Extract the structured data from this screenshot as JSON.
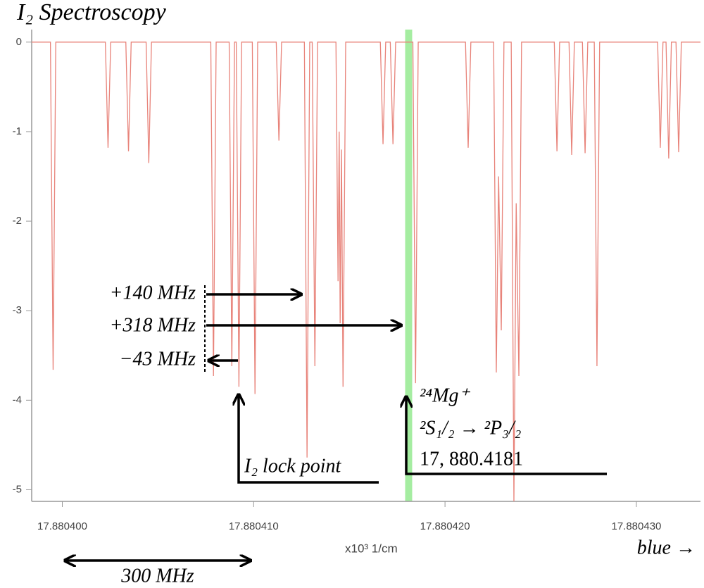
{
  "chart_data": {
    "type": "line",
    "title": "I₂ Spectroscopy",
    "x_label": "x10³ 1/cm",
    "xlim": [
      17.8803984,
      17.88043335
    ],
    "ylim": [
      -5.13,
      0.14
    ],
    "xticks": [
      {
        "value": 17.8804,
        "label": "17.880400"
      },
      {
        "value": 17.88041,
        "label": "17.880410"
      },
      {
        "value": 17.88042,
        "label": "17.880420"
      },
      {
        "value": 17.88043,
        "label": "17.880430"
      }
    ],
    "yticks": [
      0,
      -1,
      -2,
      -3,
      -4,
      -5
    ],
    "highlight_x": 17.8804181,
    "highlight_color": "#8fe88a",
    "series": [
      {
        "color": "#e8837a",
        "x": [
          17.8803984,
          17.88039938,
          17.88039952,
          17.88039966,
          17.88040225,
          17.88040239,
          17.88040253,
          17.88040332,
          17.88040346,
          17.8804036,
          17.88040438,
          17.88040452,
          17.88040466,
          17.88040776,
          17.8804079,
          17.88040804,
          17.88040872,
          17.88040886,
          17.880409,
          17.88040909,
          17.88040923,
          17.88040937,
          17.88040993,
          17.88041007,
          17.88041021,
          17.88041118,
          17.88041132,
          17.88041146,
          17.88041265,
          17.88041279,
          17.88041293,
          17.88041306,
          17.8804132,
          17.88041334,
          17.8804143,
          17.88041441,
          17.88041447,
          17.88041452,
          17.88041459,
          17.88041467,
          17.88041481,
          17.88041662,
          17.88041676,
          17.8804169,
          17.88041714,
          17.88041728,
          17.88041742,
          17.88041832,
          17.88041846,
          17.8804186,
          17.88042107,
          17.88042121,
          17.88042135,
          17.88042254,
          17.88042268,
          17.8804228,
          17.88042294,
          17.88042308,
          17.88042346,
          17.8804236,
          17.88042372,
          17.88042386,
          17.880424,
          17.88042571,
          17.88042585,
          17.88042599,
          17.88042648,
          17.88042662,
          17.88042676,
          17.88042718,
          17.88042732,
          17.88042746,
          17.8804278,
          17.88042794,
          17.88042808,
          17.88043111,
          17.88043125,
          17.88043139,
          17.88043155,
          17.88043169,
          17.88043183,
          17.88043207,
          17.88043221,
          17.88043235,
          17.88043335
        ],
        "values": [
          0,
          0,
          -3.66,
          0,
          0,
          -1.18,
          0,
          0,
          -1.22,
          0,
          0,
          -1.35,
          0,
          0,
          -3.73,
          0,
          0,
          -3.62,
          0,
          0,
          -3.85,
          0,
          0,
          -3.93,
          0,
          0,
          -1.1,
          0,
          0,
          -4.64,
          0,
          0,
          -3.62,
          0,
          0,
          -2.67,
          -1.0,
          -3.14,
          -1.2,
          -3.85,
          0,
          0,
          -1.14,
          0,
          0,
          -1.14,
          0,
          0,
          -3.81,
          0,
          0,
          -1.18,
          0,
          0,
          -3.69,
          -1.5,
          -3.22,
          0,
          0,
          -5.13,
          -1.8,
          -3.73,
          0,
          0,
          -1.22,
          0,
          0,
          -1.26,
          0,
          0,
          -1.24,
          0,
          0,
          -3.62,
          0,
          0,
          -1.18,
          0,
          0,
          -1.3,
          0,
          0,
          -1.23,
          0,
          0
        ]
      }
    ],
    "annotations": {
      "offset_1": "+140 MHz",
      "offset_2": "+318 MHz",
      "offset_3": "−43 MHz",
      "lock_point": "I₂ lock point",
      "ion": "²⁴Mg⁺",
      "transition": "²S₁/₂ →  ²P₃/₂",
      "wavenumber": "17, 880.4181",
      "scale": "300 MHz",
      "direction": "blue →"
    }
  }
}
